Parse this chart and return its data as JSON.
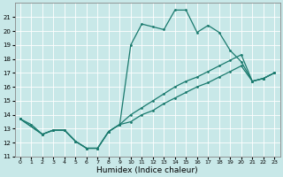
{
  "xlabel": "Humidex (Indice chaleur)",
  "xlim": [
    -0.5,
    23.5
  ],
  "ylim": [
    11,
    22
  ],
  "yticks": [
    11,
    12,
    13,
    14,
    15,
    16,
    17,
    18,
    19,
    20,
    21
  ],
  "xticks": [
    0,
    1,
    2,
    3,
    4,
    5,
    6,
    7,
    8,
    9,
    10,
    11,
    12,
    13,
    14,
    15,
    16,
    17,
    18,
    19,
    20,
    21,
    22,
    23
  ],
  "background_color": "#c8e8e8",
  "grid_color": "#ffffff",
  "line_color": "#1a7a6e",
  "line1_x": [
    0,
    1,
    2,
    3,
    4,
    5,
    6,
    7,
    8,
    9,
    10,
    11,
    12,
    13,
    14,
    15,
    16,
    17,
    18,
    19,
    20,
    21,
    22,
    23
  ],
  "line1_y": [
    13.7,
    13.3,
    12.6,
    12.9,
    12.9,
    12.1,
    11.6,
    11.6,
    12.8,
    13.3,
    19.0,
    20.5,
    20.3,
    20.1,
    21.5,
    21.5,
    19.9,
    20.4,
    19.9,
    18.6,
    17.8,
    16.4,
    16.6,
    17.0
  ],
  "line2_x": [
    0,
    2,
    3,
    4,
    5,
    6,
    7,
    8,
    9,
    10,
    11,
    12,
    13,
    14,
    15,
    16,
    17,
    18,
    19,
    20,
    21,
    22,
    23
  ],
  "line2_y": [
    13.7,
    12.6,
    12.9,
    12.9,
    12.1,
    11.6,
    11.6,
    12.8,
    13.3,
    13.5,
    14.0,
    14.3,
    14.8,
    15.2,
    15.6,
    16.0,
    16.3,
    16.7,
    17.1,
    17.5,
    16.4,
    16.6,
    17.0
  ],
  "line3_x": [
    0,
    2,
    3,
    4,
    5,
    6,
    7,
    8,
    9,
    10,
    11,
    12,
    13,
    14,
    15,
    16,
    17,
    18,
    19,
    20,
    21,
    22,
    23
  ],
  "line3_y": [
    13.7,
    12.6,
    12.9,
    12.9,
    12.1,
    11.6,
    11.6,
    12.8,
    13.3,
    14.0,
    14.5,
    15.0,
    15.5,
    16.0,
    16.4,
    16.7,
    17.1,
    17.5,
    17.9,
    18.3,
    16.4,
    16.6,
    17.0
  ]
}
